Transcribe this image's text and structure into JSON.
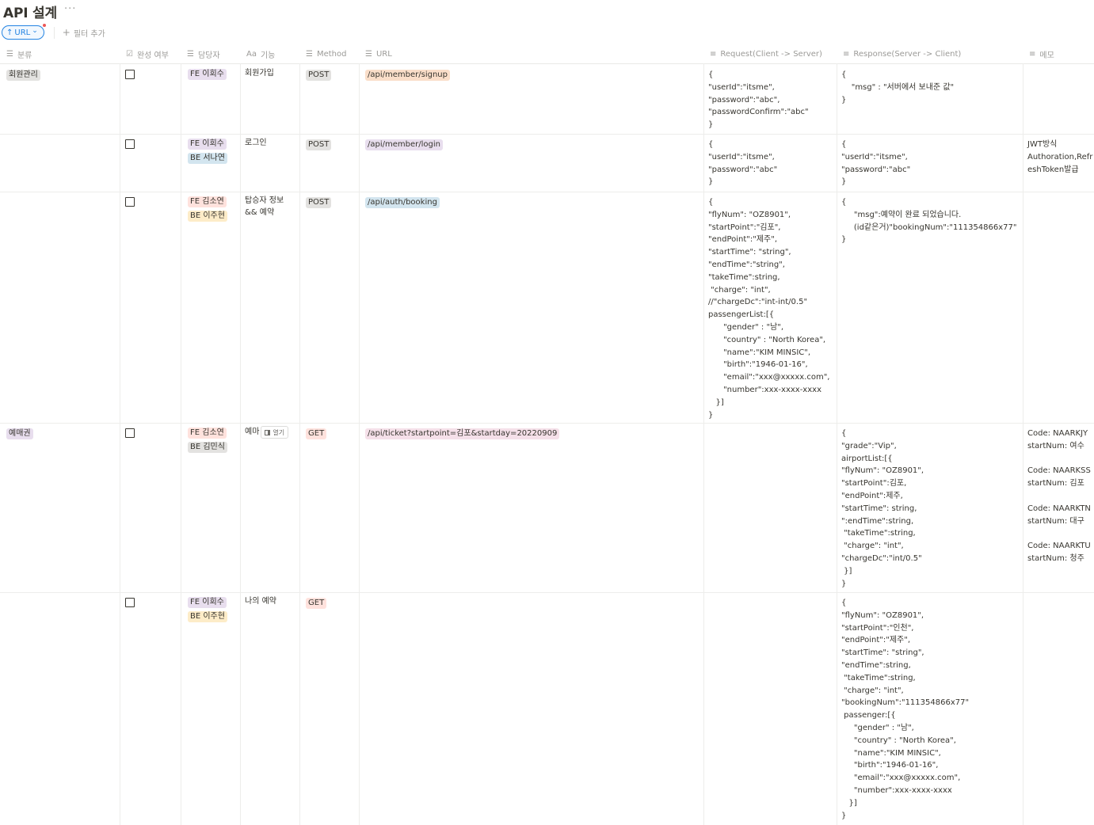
{
  "page": {
    "title": "API 설계",
    "more_icon": "more-horizontal-icon"
  },
  "toolbar": {
    "sort_chip": {
      "arrow": "↑",
      "label": "URL",
      "chevron": "⌄"
    },
    "add_filter": {
      "plus": "+",
      "label": "필터 추가"
    }
  },
  "columns": [
    {
      "key": "category",
      "label": "분류",
      "icon": "list-icon",
      "glyph": "☰"
    },
    {
      "key": "done",
      "label": "완성 여부",
      "icon": "checkbox-icon",
      "glyph": "☑"
    },
    {
      "key": "owner",
      "label": "담당자",
      "icon": "list-icon",
      "glyph": "☰"
    },
    {
      "key": "feature",
      "label": "기능",
      "icon": "text-icon",
      "glyph": "Aa"
    },
    {
      "key": "method",
      "label": "Method",
      "icon": "list-icon",
      "glyph": "☰"
    },
    {
      "key": "url",
      "label": "URL",
      "icon": "list-icon",
      "glyph": "☰"
    },
    {
      "key": "request",
      "label": "Request(Client -> Server)",
      "icon": "paragraph-icon",
      "glyph": "≡"
    },
    {
      "key": "response",
      "label": "Response(Server -> Client)",
      "icon": "paragraph-icon",
      "glyph": "≡"
    },
    {
      "key": "memo",
      "label": "메모",
      "icon": "paragraph-icon",
      "glyph": "≡"
    }
  ],
  "colors": {
    "tag_fe_purple": "#e8deee",
    "tag_fe_red": "#ffe2dd",
    "tag_be_blue": "#d3e5ef",
    "tag_be_yellow": "#fdecc8",
    "tag_be_gray": "#e3e2e0",
    "method_post": "#e3e2e0",
    "method_get": "#ffe2dd",
    "url_orange": "#fadec9",
    "url_purple": "#e8deee",
    "url_blue": "#d3e5ef",
    "url_pink": "#f5e0e9",
    "category_gray": "#e3e2e0",
    "category_purple": "#e8deee"
  },
  "rows": [
    {
      "category": "회원관리",
      "done": false,
      "owners": [
        {
          "label": "FE 이회수",
          "color": "#e8deee"
        }
      ],
      "feature": "회원가입",
      "method": {
        "label": "POST",
        "color": "#e3e2e0"
      },
      "url": {
        "label": "/api/member/signup",
        "color": "#fadec9"
      },
      "request": "{\n\"userId\":\"itsme\",\n\"password\":\"abc\",\n\"passwordConfirm\":\"abc\"\n}",
      "response": "{\n    \"msg\" : \"서버에서 보내준 값\"\n}",
      "memo": ""
    },
    {
      "category": "",
      "done": false,
      "owners": [
        {
          "label": "FE 이회수",
          "color": "#e8deee"
        },
        {
          "label": "BE 서나연",
          "color": "#d3e5ef"
        }
      ],
      "feature": "로그인",
      "method": {
        "label": "POST",
        "color": "#e3e2e0"
      },
      "url": {
        "label": "/api/member/login",
        "color": "#e8deee"
      },
      "request": "{\n\"userId\":\"itsme\",\n\"password\":\"abc\"\n}",
      "response": "{\n\"userId\":\"itsme\",\n\"password\":\"abc\"\n}",
      "memo": "JWT방식\nAuthoration,Refr\neshToken발급"
    },
    {
      "category": "",
      "done": false,
      "owners": [
        {
          "label": "FE 김소연",
          "color": "#ffe2dd"
        },
        {
          "label": "BE 이주현",
          "color": "#fdecc8"
        }
      ],
      "feature": "탑승자 정보\n&& 예약",
      "method": {
        "label": "POST",
        "color": "#e3e2e0"
      },
      "url": {
        "label": "/api/auth/booking",
        "color": "#d3e5ef"
      },
      "request": "{\n\"flyNum\": \"OZ8901\",\n\"startPoint\":\"김포\",\n\"endPoint\":\"제주\",\n\"startTime\": \"string\",\n\"endTime\":\"string\",\n\"takeTime\":string,\n \"charge\": \"int\",\n//\"chargeDc\":\"int-int/0.5\"\npassengerList:[{\n      \"gender\" : \"남\",\n      \"country\" : \"North Korea\",\n      \"name\":\"KIM MINSIC\",\n      \"birth\":\"1946-01-16\",\n      \"email\":\"xxx@xxxxx.com\",\n      \"number\":xxx-xxxx-xxxx\n   }]\n}",
      "response": "{\n     \"msg\":예약이 완료 되었습니다.\n     (id같은거)\"bookingNum\":\"111354866x77\"\n}",
      "memo": ""
    },
    {
      "category": "예매권",
      "done": false,
      "owners": [
        {
          "label": "FE 김소연",
          "color": "#ffe2dd"
        },
        {
          "label": "BE 김민식",
          "color": "#e3e2e0"
        }
      ],
      "feature": "예마",
      "open_button": "열기",
      "method": {
        "label": "GET",
        "color": "#ffe2dd"
      },
      "url": {
        "label": "/api/ticket?startpoint=김포&startday=20220909",
        "color": "#f5e0e9"
      },
      "request": "",
      "response": "{\n\"grade\":\"Vip\",\nairportList:[{\n\"flyNum\": \"OZ8901\",\n\"startPoint\":김포,\n\"endPoint\":제주,\n\"startTime\": string,\n\":endTime\":string,\n \"takeTime\":string,\n \"charge\": \"int\",\n\"chargeDc\":\"int/0.5\"\n }]\n}",
      "memo": "Code: NAARKJY\nstartNum: 여수\n\nCode: NAARKSS\nstartNum: 김포\n\nCode: NAARKTN\nstartNum: 대구\n\nCode: NAARKTU\nstartNum: 청주"
    },
    {
      "category": "",
      "done": false,
      "owners": [
        {
          "label": "FE 이회수",
          "color": "#e8deee"
        },
        {
          "label": "BE 이주현",
          "color": "#fdecc8"
        }
      ],
      "feature": "나의 예약",
      "method": {
        "label": "GET",
        "color": "#ffe2dd"
      },
      "url": null,
      "request": "",
      "response": "{\n\"flyNum\": \"OZ8901\",\n\"startPoint\":\"인천\",\n\"endPoint\":\"제주\",\n\"startTime\": \"string\",\n\"endTime\":string,\n \"takeTime\":string,\n \"charge\": \"int\",\n\"bookingNum\":\"111354866x77\"\n passenger:[{\n     \"gender\" : \"남\",\n     \"country\" : \"North Korea\",\n     \"name\":\"KIM MINSIC\",\n     \"birth\":\"1946-01-16\",\n     \"email\":\"xxx@xxxxx.com\",\n     \"number\":xxx-xxxx-xxxx\n   }]\n}",
      "memo": ""
    }
  ]
}
